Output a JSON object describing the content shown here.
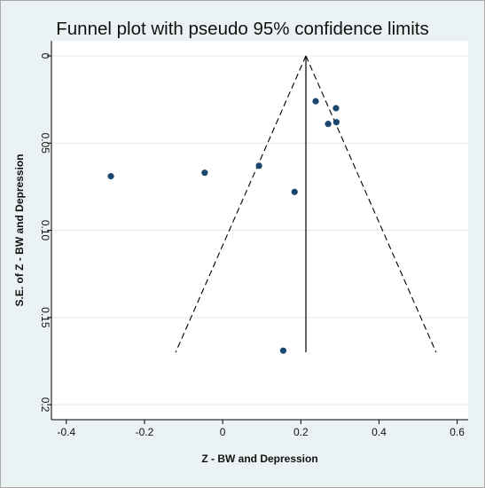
{
  "chart_data": {
    "type": "scatter",
    "title": "Funnel plot with pseudo 95% confidence limits",
    "xlabel": "Z - BW and Depression",
    "ylabel": "S.E. of Z - BW and Depression",
    "xlim": [
      -0.42,
      0.61
    ],
    "ylim": [
      0,
      0.203
    ],
    "y_axis_reversed": true,
    "grid": true,
    "x_ticks": [
      -0.4,
      -0.2,
      0,
      0.2,
      0.4,
      0.6
    ],
    "x_tick_labels": [
      "-0.4",
      "-0.2",
      "0",
      "0.2",
      "0.4",
      "0.6"
    ],
    "y_ticks": [
      0,
      0.05,
      0.1,
      0.15,
      0.2
    ],
    "y_tick_labels": [
      "0",
      "0.05",
      "0.10",
      "0.15",
      "0.2"
    ],
    "pooled_estimate": 0.213,
    "funnel_se_max": 0.17,
    "funnel_z": 1.96,
    "points": [
      {
        "x": -0.286,
        "y": 0.069
      },
      {
        "x": -0.046,
        "y": 0.067
      },
      {
        "x": 0.093,
        "y": 0.063
      },
      {
        "x": 0.184,
        "y": 0.078
      },
      {
        "x": 0.238,
        "y": 0.026
      },
      {
        "x": 0.27,
        "y": 0.039
      },
      {
        "x": 0.29,
        "y": 0.03
      },
      {
        "x": 0.291,
        "y": 0.038
      },
      {
        "x": 0.155,
        "y": 0.169
      }
    ],
    "colors": {
      "background": "#eaf2f3",
      "plot_area": "#ffffff",
      "grid": "#dfe8ea",
      "point": "#1a476f",
      "line": "#000000"
    }
  }
}
